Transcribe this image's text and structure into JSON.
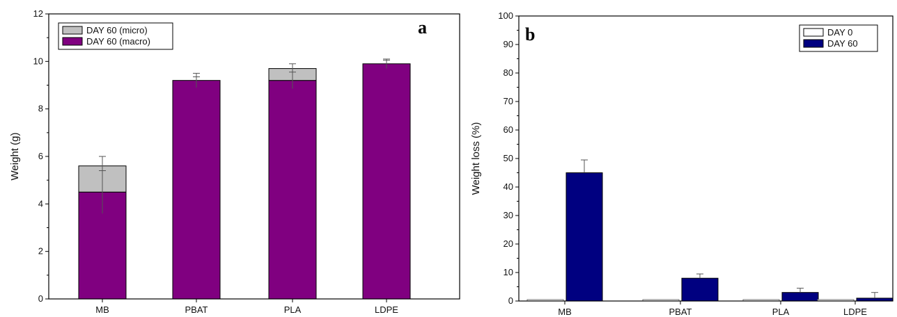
{
  "chart_data": [
    {
      "type": "bar",
      "panel_label": "a",
      "stacked": true,
      "categories": [
        "MB",
        "PBAT",
        "PLA",
        "LDPE"
      ],
      "ylabel": "Weight (g)",
      "ylim": [
        0,
        12
      ],
      "yticks": [
        0,
        2,
        4,
        6,
        8,
        10,
        12
      ],
      "legend_position": "top-left",
      "series": [
        {
          "name": "DAY 60 (macro)",
          "color": "#800080",
          "values": [
            4.5,
            9.2,
            9.2,
            9.9
          ],
          "errors": [
            0.9,
            0.15,
            0.35,
            0.15
          ]
        },
        {
          "name": "DAY 60 (micro)",
          "color": "#c0c0c0",
          "values": [
            1.1,
            0,
            0.5,
            0
          ],
          "errors": [
            0.4,
            0.3,
            0.2,
            0.2
          ]
        }
      ]
    },
    {
      "type": "bar",
      "panel_label": "b",
      "stacked": false,
      "categories": [
        "MB",
        "PBAT",
        "PLA",
        "LDPE"
      ],
      "ylabel": "Weight loss (%)",
      "ylim": [
        0,
        100
      ],
      "yticks": [
        0,
        10,
        20,
        30,
        40,
        50,
        60,
        70,
        80,
        90,
        100
      ],
      "legend_position": "top-right",
      "series": [
        {
          "name": "DAY 0",
          "color": "#ffffff",
          "values": [
            0.5,
            0.5,
            0.5,
            0.5
          ],
          "errors": [
            0,
            0,
            0,
            0
          ]
        },
        {
          "name": "DAY 60",
          "color": "#000080",
          "values": [
            45,
            8,
            3,
            1
          ],
          "errors": [
            4.5,
            1.5,
            1.5,
            2
          ]
        }
      ]
    }
  ]
}
